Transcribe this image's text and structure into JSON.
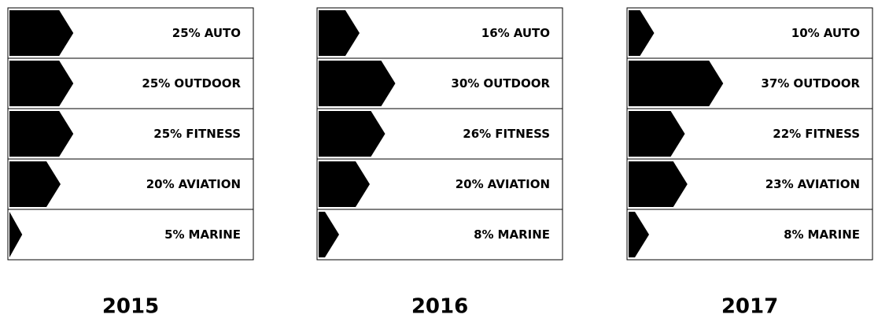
{
  "chart_data": [
    {
      "type": "bar",
      "title": "2015",
      "categories": [
        "AUTO",
        "OUTDOOR",
        "FITNESS",
        "AVIATION",
        "MARINE"
      ],
      "values": [
        25,
        25,
        25,
        20,
        5
      ],
      "value_labels": [
        "25%",
        "25%",
        "25%",
        "20%",
        "5%"
      ],
      "color": "#000000"
    },
    {
      "type": "bar",
      "title": "2016",
      "categories": [
        "AUTO",
        "OUTDOOR",
        "FITNESS",
        "AVIATION",
        "MARINE"
      ],
      "values": [
        16,
        30,
        26,
        20,
        8
      ],
      "value_labels": [
        "16%",
        "30%",
        "26%",
        "20%",
        "8%"
      ],
      "color": "#000000"
    },
    {
      "type": "bar",
      "title": "2017",
      "categories": [
        "AUTO",
        "OUTDOOR",
        "FITNESS",
        "AVIATION",
        "MARINE"
      ],
      "values": [
        10,
        37,
        22,
        23,
        8
      ],
      "value_labels": [
        "10%",
        "37%",
        "22%",
        "23%",
        "8%"
      ],
      "color": "#000000"
    }
  ]
}
